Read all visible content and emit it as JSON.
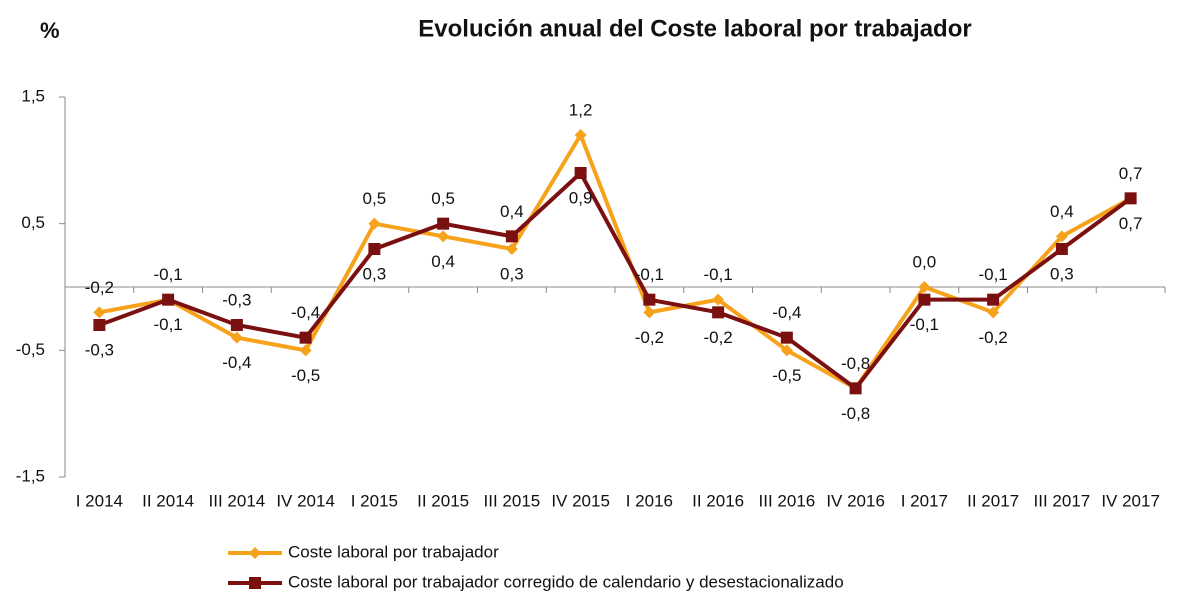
{
  "chart_data": {
    "type": "line",
    "title": "Evolución anual del Coste laboral por trabajador",
    "y_unit": "%",
    "categories": [
      "I 2014",
      "II 2014",
      "III 2014",
      "IV 2014",
      "I 2015",
      "II 2015",
      "III 2015",
      "IV 2015",
      "I 2016",
      "II 2016",
      "III 2016",
      "IV 2016",
      "I 2017",
      "II 2017",
      "III 2017",
      "IV 2017"
    ],
    "series": [
      {
        "name": "Coste laboral por trabajador",
        "color": "#f7a21b",
        "marker": "diamond",
        "values": [
          -0.2,
          -0.1,
          -0.4,
          -0.5,
          0.5,
          0.4,
          0.3,
          1.2,
          -0.2,
          -0.1,
          -0.5,
          -0.8,
          0.0,
          -0.2,
          0.4,
          0.7
        ],
        "value_labels": [
          "-0,2",
          "-0,1",
          "-0,4",
          "-0,5",
          "0,5",
          "0,4",
          "0,3",
          "1,2",
          "-0,2",
          "-0,1",
          "-0,5",
          "-0,8",
          "0,0",
          "-0,2",
          "0,4",
          "0,7"
        ]
      },
      {
        "name": "Coste laboral por trabajador corregido de calendario y desestacionalizado",
        "color": "#7b1010",
        "marker": "square",
        "values": [
          -0.3,
          -0.1,
          -0.3,
          -0.4,
          0.3,
          0.5,
          0.4,
          0.9,
          -0.1,
          -0.2,
          -0.4,
          -0.8,
          -0.1,
          -0.1,
          0.3,
          0.7
        ],
        "value_labels": [
          "-0,3",
          "-0,1",
          "-0,3",
          "-0,4",
          "0,3",
          "0,5",
          "0,4",
          "0,9",
          "-0,1",
          "-0,2",
          "-0,4",
          "-0,8",
          "-0,1",
          "-0,1",
          "0,3",
          "0,7"
        ]
      }
    ],
    "ylim": [
      -1.5,
      1.5
    ],
    "yticks": [
      {
        "value": -1.5,
        "label": "-1,5"
      },
      {
        "value": -0.5,
        "label": "-0,5"
      },
      {
        "value": 0.5,
        "label": "0,5"
      },
      {
        "value": 1.5,
        "label": "1,5"
      }
    ],
    "grid": false,
    "legend": "bottom"
  }
}
